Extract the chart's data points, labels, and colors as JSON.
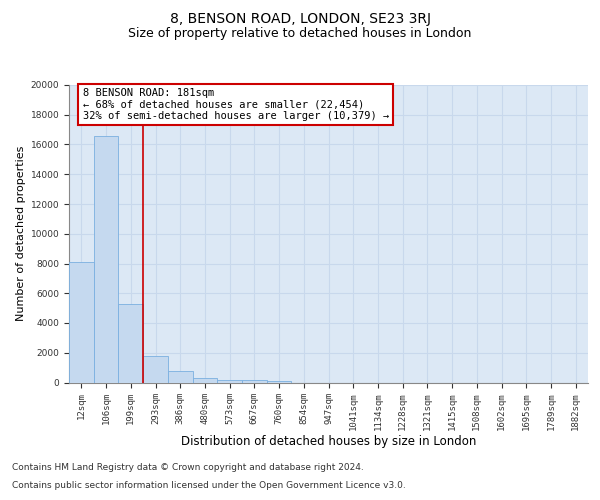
{
  "title": "8, BENSON ROAD, LONDON, SE23 3RJ",
  "subtitle": "Size of property relative to detached houses in London",
  "xlabel": "Distribution of detached houses by size in London",
  "ylabel": "Number of detached properties",
  "bin_labels": [
    "12sqm",
    "106sqm",
    "199sqm",
    "293sqm",
    "386sqm",
    "480sqm",
    "573sqm",
    "667sqm",
    "760sqm",
    "854sqm",
    "947sqm",
    "1041sqm",
    "1134sqm",
    "1228sqm",
    "1321sqm",
    "1415sqm",
    "1508sqm",
    "1602sqm",
    "1695sqm",
    "1789sqm",
    "1882sqm"
  ],
  "bar_heights": [
    8100,
    16600,
    5300,
    1750,
    750,
    330,
    200,
    150,
    130,
    0,
    0,
    0,
    0,
    0,
    0,
    0,
    0,
    0,
    0,
    0,
    0
  ],
  "bar_color": "#c5d9ef",
  "bar_edge_color": "#7aafe0",
  "vline_color": "#cc0000",
  "vline_x": 2.5,
  "annotation_text": "8 BENSON ROAD: 181sqm\n← 68% of detached houses are smaller (22,454)\n32% of semi-detached houses are larger (10,379) →",
  "annotation_box_color": "#cc0000",
  "ylim": [
    0,
    20000
  ],
  "yticks": [
    0,
    2000,
    4000,
    6000,
    8000,
    10000,
    12000,
    14000,
    16000,
    18000,
    20000
  ],
  "bg_color": "#dce8f5",
  "grid_color": "#c8d8ec",
  "footer_line1": "Contains HM Land Registry data © Crown copyright and database right 2024.",
  "footer_line2": "Contains public sector information licensed under the Open Government Licence v3.0.",
  "title_fontsize": 10,
  "subtitle_fontsize": 9,
  "xlabel_fontsize": 8.5,
  "ylabel_fontsize": 8,
  "tick_fontsize": 6.5,
  "annot_fontsize": 7.5,
  "footer_fontsize": 6.5
}
